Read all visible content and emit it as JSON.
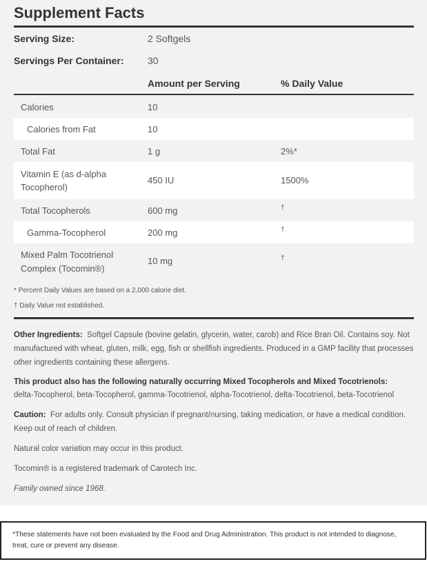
{
  "title": "Supplement Facts",
  "serving_size": {
    "label": "Serving Size:",
    "value": "2 Softgels"
  },
  "servings_per_container": {
    "label": "Servings Per Container:",
    "value": "30"
  },
  "headers": {
    "amount": "Amount per Serving",
    "dv": "% Daily Value"
  },
  "rows": [
    {
      "name": "Calories",
      "amount": "10",
      "dv": ""
    },
    {
      "name": "Calories from Fat",
      "amount": "10",
      "dv": ""
    },
    {
      "name": "Total Fat",
      "amount": "1 g",
      "dv": "2%*"
    },
    {
      "name": "Vitamin E (as d-alpha Tocopherol)",
      "amount": "450 IU",
      "dv": "1500%"
    },
    {
      "name": "Total Tocopherols",
      "amount": "600 mg",
      "dv": "†"
    },
    {
      "name": "Gamma-Tocopherol",
      "amount": "200 mg",
      "dv": "†"
    },
    {
      "name": "Mixed Palm Tocotrienol Complex (Tocomin®)",
      "amount": "10 mg",
      "dv": "†"
    }
  ],
  "footnotes": [
    "* Percent Daily Values are based on a 2,000 calorie diet.",
    "† Daily Value not established."
  ],
  "other_ingredients": {
    "label": "Other Ingredients:",
    "text": "Softgel Capsule (bovine gelatin, glycerin, water, carob) and Rice Bran Oil. Contains soy. Not manufactured with wheat, gluten, milk, egg, fish or shellfish ingredients. Produced in a GMP facility that processes other ingredients containing these allergens."
  },
  "naturally_occurring": {
    "label": "This product also has the following naturally occurring Mixed Tocopherols and Mixed Tocotrienols:",
    "text": "delta-Tocopherol, beta-Tocopherol, gamma-Tocotrienol, alpha-Tocotrienol, delta-Tocotrienol, beta-Tocotrienol"
  },
  "caution": {
    "label": "Caution:",
    "text": "For adults only. Consult physician if pregnant/nursing, taking medication, or have a medical condition. Keep out of reach of children."
  },
  "color_note": "Natural color variation may occur in this product.",
  "trademark": "Tocomin® is a registered trademark of Carotech Inc.",
  "family": "Family owned since 1968.",
  "disclaimer": "*These statements have not been evaluated by the Food and Drug Administration. This product is not intended to diagnose, treat, cure or prevent any disease."
}
